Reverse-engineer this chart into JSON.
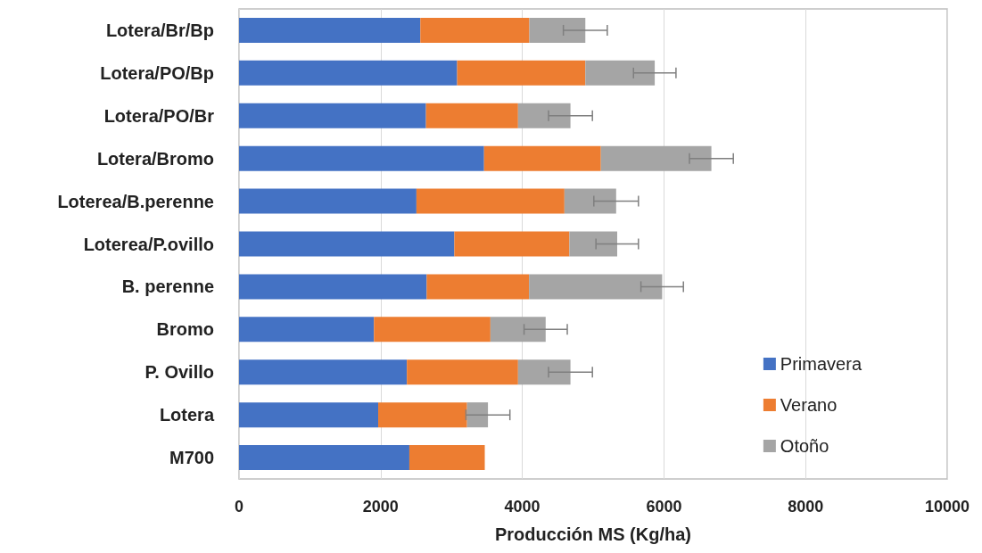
{
  "chart_data": {
    "type": "bar",
    "orientation": "horizontal",
    "stacked": true,
    "xlabel": "Producción MS (Kg/ha)",
    "categories": [
      "Lotera/Br/Bp",
      "Lotera/PO/Bp",
      "Lotera/PO/Br",
      "Lotera/Bromo",
      "Loterea/B.perenne",
      "Loterea/P.ovillo",
      "B. perenne",
      "Bromo",
      "P. Ovillo",
      "Lotera",
      "M700"
    ],
    "series": [
      {
        "name": "Primavera",
        "color": "#4472c4",
        "values": [
          2560,
          3080,
          2640,
          3460,
          2505,
          3040,
          2650,
          1905,
          2370,
          1965,
          2405
        ]
      },
      {
        "name": "Verano",
        "color": "#ed7d31",
        "values": [
          1540,
          1810,
          1300,
          1650,
          2090,
          1625,
          1445,
          1645,
          1570,
          1255,
          1065
        ]
      },
      {
        "name": "Otoño",
        "color": "#a5a5a5",
        "values": [
          790,
          980,
          740,
          1560,
          730,
          675,
          1880,
          780,
          740,
          295,
          null
        ],
        "errors": [
          310,
          300,
          310,
          310,
          315,
          300,
          300,
          305,
          310,
          310,
          null
        ]
      }
    ],
    "xlim": [
      0,
      10000
    ],
    "xticks": [
      0,
      2000,
      4000,
      6000,
      8000,
      10000
    ],
    "grid": "x",
    "legend": "bottom right"
  }
}
